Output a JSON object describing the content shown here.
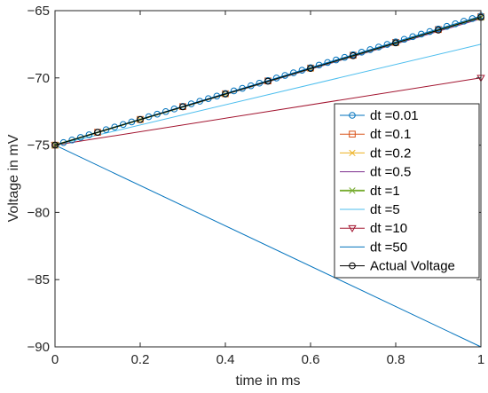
{
  "chart_data": {
    "type": "line",
    "title": "",
    "xlabel": "time in ms",
    "ylabel": "Voltage in mV",
    "xlim": [
      0,
      1
    ],
    "ylim": [
      -90,
      -65
    ],
    "xticks": [
      0,
      0.2,
      0.4,
      0.6,
      0.8,
      1
    ],
    "xtick_labels": [
      "0",
      "0.2",
      "0.4",
      "0.6",
      "0.8",
      "1"
    ],
    "yticks": [
      -90,
      -85,
      -80,
      -75,
      -70,
      -65
    ],
    "ytick_labels": [
      "−90",
      "−85",
      "−80",
      "−75",
      "−70",
      "−65"
    ],
    "grid": false,
    "legend_position": "right",
    "series": [
      {
        "name": "dt =0.01",
        "color": "#0072BD",
        "marker": "circle",
        "x": [
          0,
          1
        ],
        "y": [
          -75,
          -65.4
        ]
      },
      {
        "name": "dt =0.1",
        "color": "#D95319",
        "marker": "square",
        "x": [
          0,
          1
        ],
        "y": [
          -75,
          -65.45
        ]
      },
      {
        "name": "dt =0.2",
        "color": "#EDB120",
        "marker": "x",
        "x": [
          0,
          1
        ],
        "y": [
          -75,
          -65.5
        ]
      },
      {
        "name": "dt =0.5",
        "color": "#7E2F8E",
        "marker": "none",
        "x": [
          0,
          1
        ],
        "y": [
          -75,
          -65.6
        ]
      },
      {
        "name": "dt =1",
        "color": "#77AC30",
        "marker": "x",
        "x": [
          0,
          1
        ],
        "y": [
          -75,
          -65.5
        ]
      },
      {
        "name": "dt =5",
        "color": "#4DBEEE",
        "marker": "none",
        "x": [
          0,
          1
        ],
        "y": [
          -75,
          -67.5
        ]
      },
      {
        "name": "dt =10",
        "color": "#A2142F",
        "marker": "triangle-down",
        "x": [
          0,
          1
        ],
        "y": [
          -75,
          -70
        ]
      },
      {
        "name": "dt =50",
        "color": "#0072BD",
        "marker": "none",
        "x": [
          0,
          1
        ],
        "y": [
          -75,
          -90
        ]
      },
      {
        "name": "Actual Voltage",
        "color": "#000000",
        "marker": "circle",
        "x": [
          0,
          1
        ],
        "y": [
          -75,
          -65.5
        ]
      }
    ]
  }
}
